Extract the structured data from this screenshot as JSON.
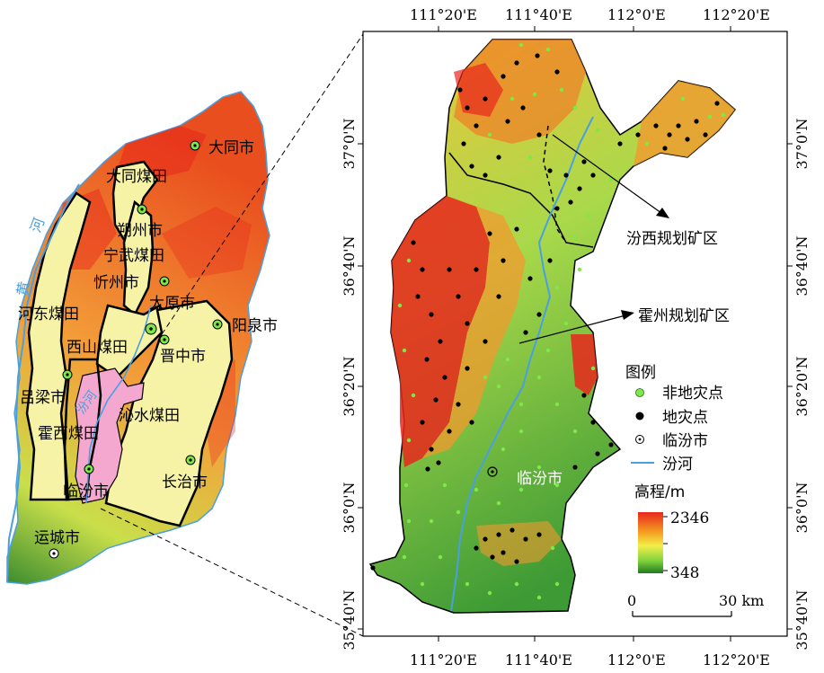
{
  "inset_map": {
    "coal_fields": [
      "大同煤田",
      "宁武煤田",
      "河东煤田",
      "西山煤田",
      "沁水煤田",
      "霍西煤田"
    ],
    "cities": [
      "大同市",
      "朔州市",
      "忻州市",
      "太原市",
      "阳泉市",
      "晋中市",
      "吕梁市",
      "长治市",
      "临汾市",
      "运城市"
    ],
    "river_label": "黄河",
    "river_label_chars": [
      "河",
      "黄"
    ],
    "fen_river_label": "汾河"
  },
  "main_map": {
    "top_longitude_labels": [
      "111°20'E",
      "111°40'E",
      "112°0'E",
      "112°20'E"
    ],
    "bottom_longitude_labels": [
      "111°20'E",
      "111°40'E",
      "112°0'E",
      "112°20'E"
    ],
    "left_latitude_labels": [
      "37°0'N",
      "36°40'N",
      "36°20'N",
      "36°0'N",
      "35°40'N"
    ],
    "right_latitude_labels": [
      "37°0'N",
      "36°40'N",
      "36°20'N",
      "36°0'N",
      "35°40'N"
    ],
    "annotations": {
      "fenxi": "汾西规划矿区",
      "huozhou": "霍州规划矿区",
      "city": "临汾市"
    }
  },
  "legend": {
    "title": "图例",
    "items": [
      {
        "label": "非地灾点",
        "symbol": "green-dot",
        "color": "#7ee84a"
      },
      {
        "label": "地灾点",
        "symbol": "black-dot",
        "color": "#000000"
      },
      {
        "label": "临汾市",
        "symbol": "city-circle",
        "color": "#000000"
      },
      {
        "label": "汾河",
        "symbol": "river-line",
        "color": "#4a9fe0"
      }
    ],
    "elevation_title": "高程/m",
    "elevation_max": "2346",
    "elevation_min": "348",
    "scale_start": "0",
    "scale_end": "30 km"
  },
  "colors": {
    "high": "#e8271c",
    "mid_high": "#f5a623",
    "mid": "#f7f04a",
    "mid_low": "#8fd64a",
    "low": "#2f8f2a",
    "coal_field": "#f6f3a6",
    "linfen_region": "#f4a7cf",
    "river": "#4a9fe0"
  }
}
